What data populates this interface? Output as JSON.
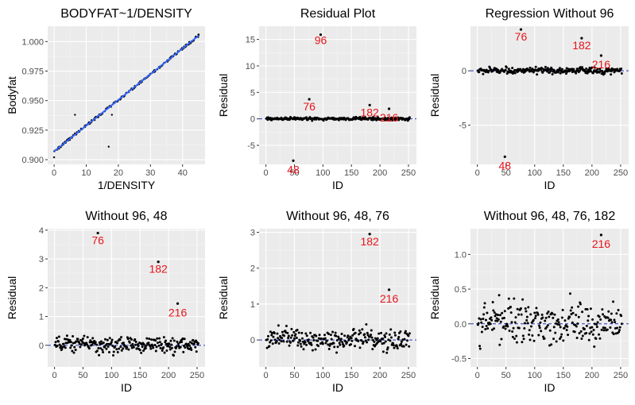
{
  "chart_data": [
    {
      "type": "scatter",
      "title": "BODYFAT~1/DENSITY",
      "xlabel": "1/DENSITY",
      "ylabel": "Bodyfat",
      "xlim": [
        -2,
        47
      ],
      "ylim": [
        0.896,
        1.013
      ],
      "xticks": [
        0,
        10,
        20,
        30,
        40
      ],
      "yticks": [
        0.9,
        0.925,
        0.95,
        0.975,
        1.0
      ],
      "ytick_labels": [
        "0.900",
        "0.925",
        "0.950",
        "0.975",
        "1.000"
      ],
      "fit_line": {
        "x": [
          0,
          45
        ],
        "y": [
          0.907,
          1.005
        ],
        "color": "#3366ff"
      },
      "outliers": [
        {
          "x": 0,
          "y": 0.902
        },
        {
          "x": 6.5,
          "y": 0.938
        },
        {
          "x": 17,
          "y": 0.911
        },
        {
          "x": 18,
          "y": 0.938
        }
      ],
      "grid": true
    },
    {
      "type": "scatter",
      "title": "Residual Plot",
      "xlabel": "ID",
      "ylabel": "Residual",
      "xlim": [
        -12,
        264
      ],
      "ylim": [
        -8.6,
        17.5
      ],
      "xticks": [
        0,
        50,
        100,
        150,
        200,
        250
      ],
      "yticks": [
        -5,
        0,
        5,
        10,
        15
      ],
      "reference_line": 0,
      "labeled_points": [
        {
          "id": 96,
          "x": 96,
          "y": 15.9,
          "label": "96"
        },
        {
          "id": 48,
          "x": 48,
          "y": -7.9,
          "label": "48"
        },
        {
          "id": 76,
          "x": 76,
          "y": 3.7,
          "label": "76"
        },
        {
          "id": 182,
          "x": 182,
          "y": 2.6,
          "label": "182"
        },
        {
          "id": 216,
          "x": 216,
          "y": 1.9,
          "label": "216"
        }
      ],
      "noise_range": [
        -0.6,
        0.9
      ],
      "grid": true
    },
    {
      "type": "scatter",
      "title": "Regression Without 96",
      "xlabel": "ID",
      "ylabel": "Residual",
      "xlim": [
        -12,
        264
      ],
      "ylim": [
        -8.6,
        4.1
      ],
      "xticks": [
        0,
        50,
        100,
        150,
        200,
        250
      ],
      "yticks": [
        -5,
        0
      ],
      "reference_line": 0,
      "labeled_points": [
        {
          "id": 76,
          "x": 76,
          "y": 3.8,
          "label": "76"
        },
        {
          "id": 48,
          "x": 48,
          "y": -7.9,
          "label": "48"
        },
        {
          "id": 182,
          "x": 182,
          "y": 3.0,
          "label": "182"
        },
        {
          "id": 216,
          "x": 216,
          "y": 1.4,
          "label": "216"
        }
      ],
      "noise_range": [
        -0.6,
        0.7
      ],
      "grid": true
    },
    {
      "type": "scatter",
      "title": "Without 96, 48",
      "xlabel": "ID",
      "ylabel": "Residual",
      "xlim": [
        -12,
        264
      ],
      "ylim": [
        -0.75,
        4.05
      ],
      "xticks": [
        0,
        50,
        100,
        150,
        200,
        250
      ],
      "yticks": [
        0,
        1,
        2,
        3,
        4
      ],
      "reference_line": 0,
      "labeled_points": [
        {
          "id": 76,
          "x": 76,
          "y": 3.9,
          "label": "76"
        },
        {
          "id": 182,
          "x": 182,
          "y": 2.9,
          "label": "182"
        },
        {
          "id": 216,
          "x": 216,
          "y": 1.45,
          "label": "216"
        }
      ],
      "noise_range": [
        -0.6,
        0.7
      ],
      "grid": true
    },
    {
      "type": "scatter",
      "title": "Without 96, 48, 76",
      "xlabel": "ID",
      "ylabel": "Residual",
      "xlim": [
        -12,
        264
      ],
      "ylim": [
        -0.75,
        3.1
      ],
      "xticks": [
        0,
        50,
        100,
        150,
        200,
        250
      ],
      "yticks": [
        0,
        1,
        2,
        3
      ],
      "reference_line": 0,
      "labeled_points": [
        {
          "id": 182,
          "x": 182,
          "y": 2.95,
          "label": "182"
        },
        {
          "id": 216,
          "x": 216,
          "y": 1.4,
          "label": "216"
        }
      ],
      "noise_range": [
        -0.6,
        0.7
      ],
      "grid": true
    },
    {
      "type": "scatter",
      "title": "Without 96, 48, 76, 182",
      "xlabel": "ID",
      "ylabel": "Residual",
      "xlim": [
        -12,
        264
      ],
      "ylim": [
        -0.62,
        1.37
      ],
      "xticks": [
        0,
        50,
        100,
        150,
        200,
        250
      ],
      "yticks": [
        -0.5,
        0.0,
        0.5,
        1.0
      ],
      "ytick_labels": [
        "-0.5",
        "0.0",
        "0.5",
        "1.0"
      ],
      "reference_line": 0,
      "labeled_points": [
        {
          "id": 216,
          "x": 216,
          "y": 1.28,
          "label": "216"
        }
      ],
      "noise_range": [
        -0.6,
        0.65
      ],
      "grid": true
    }
  ]
}
